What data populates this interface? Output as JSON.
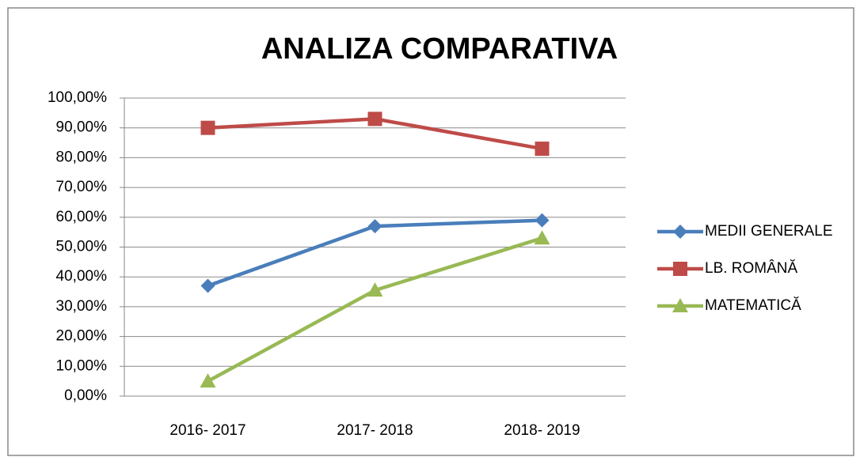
{
  "chart_data": {
    "type": "line",
    "title": "ANALIZA COMPARATIVA",
    "categories": [
      "2016- 2017",
      "2017- 2018",
      "2018- 2019"
    ],
    "series": [
      {
        "name": "MEDII GENERALE",
        "color": "#4a7ebb",
        "marker": "diamond",
        "values": [
          37,
          57,
          59
        ]
      },
      {
        "name": "LB. ROMÂNĂ",
        "color": "#be4b48",
        "marker": "square",
        "values": [
          90,
          93,
          83
        ]
      },
      {
        "name": "MATEMATICĂ",
        "color": "#98b954",
        "marker": "triangle",
        "values": [
          5,
          35.5,
          53
        ]
      }
    ],
    "ylim": [
      0,
      100
    ],
    "yticks": [
      {
        "value": 0,
        "label": "0,00%"
      },
      {
        "value": 10,
        "label": "10,00%"
      },
      {
        "value": 20,
        "label": "20,00%"
      },
      {
        "value": 30,
        "label": "30,00%"
      },
      {
        "value": 40,
        "label": "40,00%"
      },
      {
        "value": 50,
        "label": "50,00%"
      },
      {
        "value": 60,
        "label": "60,00%"
      },
      {
        "value": 70,
        "label": "70,00%"
      },
      {
        "value": 80,
        "label": "80,00%"
      },
      {
        "value": 90,
        "label": "90,00%"
      },
      {
        "value": 100,
        "label": "100,00%"
      }
    ],
    "grid": true,
    "legend": "right"
  }
}
